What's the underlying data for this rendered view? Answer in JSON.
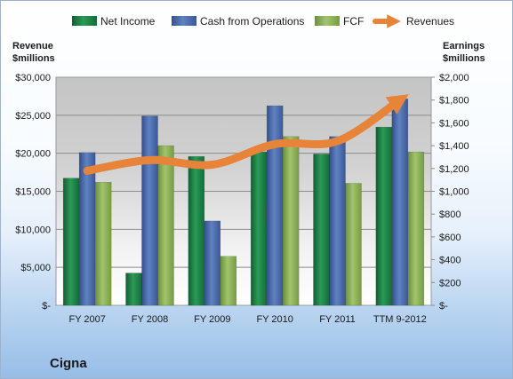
{
  "chart_data": {
    "type": "bar",
    "title": "Cigna",
    "categories": [
      "FY 2007",
      "FY 2008",
      "FY 2009",
      "FY 2010",
      "FY 2011",
      "TTM 9-2012"
    ],
    "left_axis": {
      "label_line1": "Revenue",
      "label_line2": "$millions",
      "ylim": [
        0,
        30000
      ],
      "ticks": [
        "$-",
        "$5,000",
        "$10,000",
        "$15,000",
        "$20,000",
        "$25,000",
        "$30,000"
      ]
    },
    "right_axis": {
      "label_line1": "Earnings",
      "label_line2": "$millions",
      "ylim": [
        0,
        2000
      ],
      "ticks": [
        "$-",
        "$200",
        "$400",
        "$600",
        "$800",
        "$1,000",
        "$1,200",
        "$1,400",
        "$1,600",
        "$1,800",
        "$2,000"
      ]
    },
    "series": [
      {
        "name": "Net Income",
        "axis": "right",
        "kind": "bar",
        "color": "#1f8a4c",
        "values": [
          1115,
          283,
          1305,
          1345,
          1327,
          1563
        ]
      },
      {
        "name": "Cash from Operations",
        "axis": "right",
        "kind": "bar",
        "color": "#4f6fae",
        "values": [
          1340,
          1660,
          740,
          1750,
          1480,
          1810
        ]
      },
      {
        "name": "FCF",
        "axis": "right",
        "kind": "bar",
        "color": "#8db35a",
        "values": [
          1080,
          1400,
          430,
          1480,
          1070,
          1345
        ]
      },
      {
        "name": "Revenues",
        "axis": "left",
        "kind": "line",
        "color": "#e8843a",
        "values": [
          17700,
          19100,
          18500,
          21200,
          21600,
          27000
        ]
      }
    ],
    "grid": true,
    "legend_position": "top"
  }
}
